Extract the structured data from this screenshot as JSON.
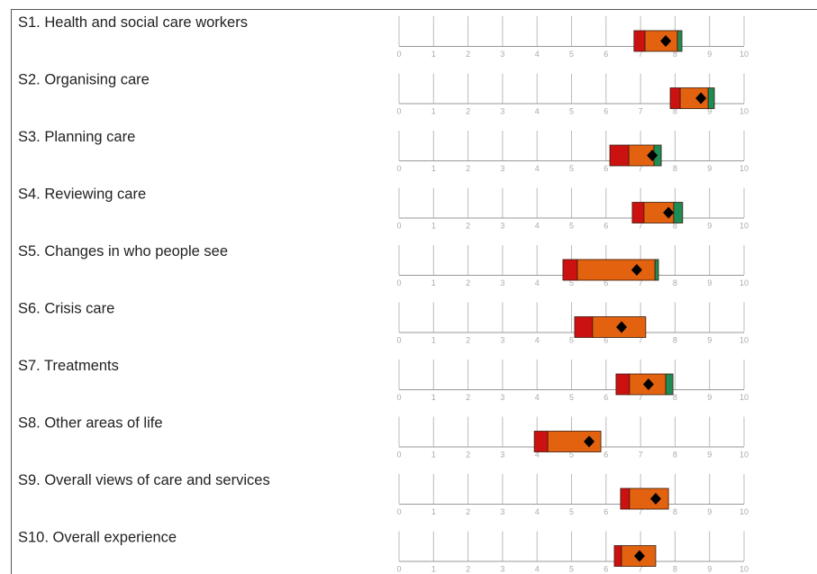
{
  "chart_data": {
    "type": "range-bar",
    "categories": [
      "S1. Health and social care workers",
      "S2. Organising care",
      "S3. Planning care",
      "S4. Reviewing care",
      "S5. Changes in who people see",
      "S6. Crisis care",
      "S7. Treatments",
      "S8. Other areas of life",
      "S9. Overall views of care and services",
      "S10. Overall experience"
    ],
    "segments": [
      {
        "color": "#cc1111",
        "starts": [
          6.81,
          7.86,
          6.11,
          6.76,
          4.75,
          5.09,
          6.29,
          3.92,
          6.42,
          6.24
        ],
        "ends": [
          7.13,
          8.15,
          6.66,
          7.1,
          5.17,
          5.61,
          6.68,
          4.31,
          6.68,
          6.45
        ]
      },
      {
        "color": "#e2620f",
        "starts": [
          7.13,
          8.15,
          6.66,
          7.1,
          5.17,
          5.61,
          6.68,
          4.31,
          6.68,
          6.45
        ],
        "ends": [
          8.07,
          8.96,
          7.39,
          7.96,
          7.42,
          7.15,
          7.73,
          5.85,
          7.81,
          7.44
        ]
      },
      {
        "color": "#1e8c55",
        "starts": [
          8.07,
          8.96,
          7.39,
          7.96,
          7.42,
          null,
          7.73,
          null,
          null,
          null
        ],
        "ends": [
          8.2,
          9.14,
          7.6,
          8.22,
          7.52,
          null,
          7.94,
          null,
          null,
          null
        ]
      }
    ],
    "scores": [
      7.73,
      8.75,
      7.34,
      7.81,
      6.89,
      6.45,
      7.23,
      5.51,
      7.44,
      6.97
    ],
    "score_color": "#000000",
    "xlim": [
      0,
      10
    ],
    "xticks": [
      0,
      1,
      2,
      3,
      4,
      5,
      6,
      7,
      8,
      9,
      10
    ],
    "grid": true
  }
}
